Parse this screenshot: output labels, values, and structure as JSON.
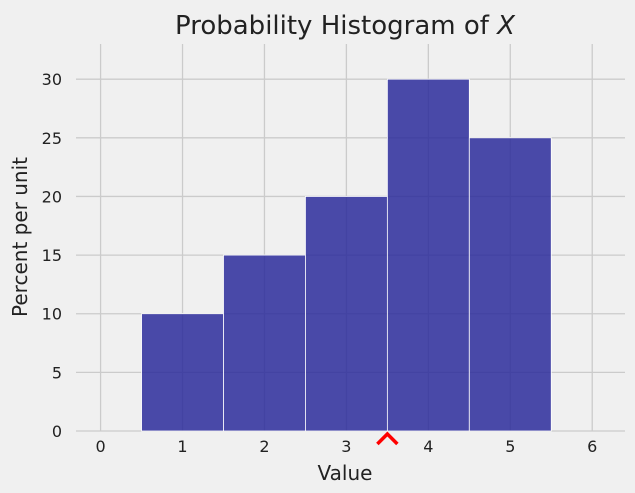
{
  "chart_data": {
    "type": "bar",
    "title": "Probability Histogram of ",
    "title_var": "X",
    "xlabel": "Value",
    "ylabel": "Percent per unit",
    "bins": [
      {
        "left": 0.5,
        "right": 1.5,
        "value": 10
      },
      {
        "left": 1.5,
        "right": 2.5,
        "value": 15
      },
      {
        "left": 2.5,
        "right": 3.5,
        "value": 20
      },
      {
        "left": 3.5,
        "right": 4.5,
        "value": 30
      },
      {
        "left": 4.5,
        "right": 5.5,
        "value": 25
      }
    ],
    "xlim": [
      -0.3,
      6.4
    ],
    "ylim": [
      0,
      33
    ],
    "xticks": [
      "0",
      "1",
      "2",
      "3",
      "4",
      "5",
      "6"
    ],
    "yticks": [
      "0",
      "5",
      "10",
      "15",
      "20",
      "25",
      "30"
    ],
    "grid": true,
    "marker_x": 3.5,
    "bar_color": "#2b2b9b",
    "marker_color": "#ff0000",
    "background": "#f0f0f0",
    "grid_color": "#cbcbcb"
  }
}
